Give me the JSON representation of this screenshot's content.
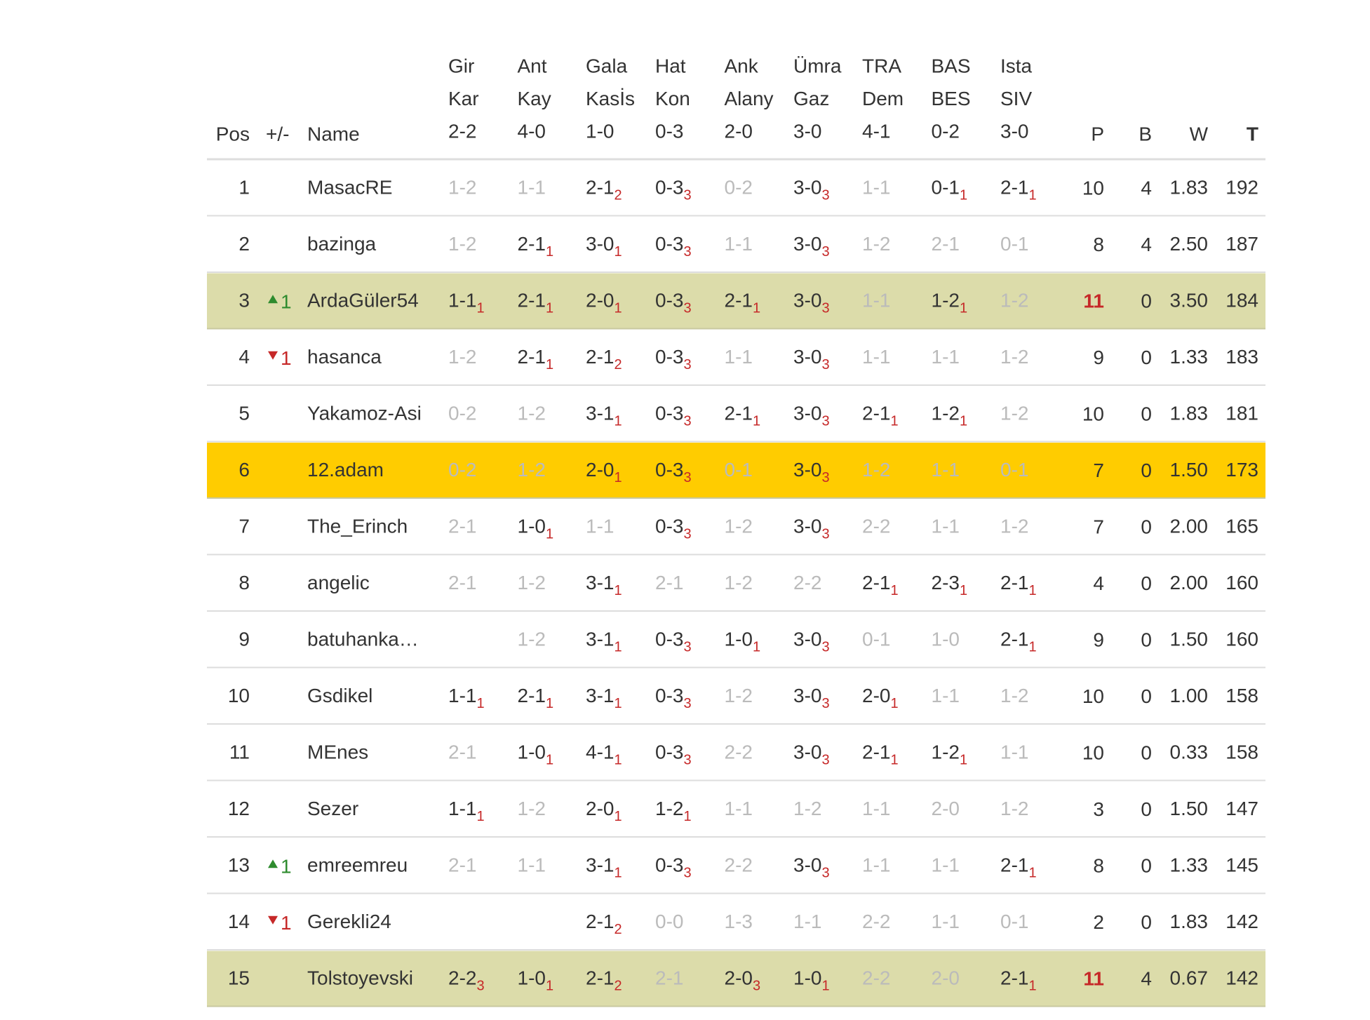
{
  "header": {
    "columns": [
      "Pos",
      "+/-",
      "Name"
    ],
    "matches": [
      [
        "Gir",
        "Kar",
        "2-2"
      ],
      [
        "Ant",
        "Kay",
        "4-0"
      ],
      [
        "Gala",
        "Kasİs",
        "1-0"
      ],
      [
        "Hat",
        "Kon",
        "0-3"
      ],
      [
        "Ank",
        "Alany",
        "2-0"
      ],
      [
        "Ümra",
        "Gaz",
        "3-0"
      ],
      [
        "TRA",
        "Dem",
        "4-1"
      ],
      [
        "BAS",
        "BES",
        "0-2"
      ],
      [
        "Ista",
        "SIV",
        "3-0"
      ]
    ],
    "stats": [
      "P",
      "B",
      "W",
      "T"
    ]
  },
  "rows": [
    {
      "pos": 1,
      "name": "MasacRE",
      "picks": [
        [
          "1-2",
          null
        ],
        [
          "1-1",
          null
        ],
        [
          "2-1",
          2
        ],
        [
          "0-3",
          3
        ],
        [
          "0-2",
          null
        ],
        [
          "3-0",
          3
        ],
        [
          "1-1",
          null
        ],
        [
          "0-1",
          1
        ],
        [
          "2-1",
          1
        ]
      ],
      "p": 10,
      "b": 4,
      "w": "1.83",
      "t": 192
    },
    {
      "pos": 2,
      "name": "bazinga",
      "picks": [
        [
          "1-2",
          null
        ],
        [
          "2-1",
          1
        ],
        [
          "3-0",
          1
        ],
        [
          "0-3",
          3
        ],
        [
          "1-1",
          null
        ],
        [
          "3-0",
          3
        ],
        [
          "1-2",
          null
        ],
        [
          "2-1",
          null
        ],
        [
          "0-1",
          null
        ]
      ],
      "p": 8,
      "b": 4,
      "w": "2.50",
      "t": 187
    },
    {
      "pos": 3,
      "trend": "up",
      "change": 1,
      "name": "ArdaGüler54",
      "picks": [
        [
          "1-1",
          1
        ],
        [
          "2-1",
          1
        ],
        [
          "2-0",
          1
        ],
        [
          "0-3",
          3
        ],
        [
          "2-1",
          1
        ],
        [
          "3-0",
          3
        ],
        [
          "1-1",
          null
        ],
        [
          "1-2",
          1
        ],
        [
          "1-2",
          null
        ]
      ],
      "p": 11,
      "b": 0,
      "w": "3.50",
      "t": 184,
      "highlight": "leader"
    },
    {
      "pos": 4,
      "trend": "down",
      "change": 1,
      "name": "hasanca",
      "picks": [
        [
          "1-2",
          null
        ],
        [
          "2-1",
          1
        ],
        [
          "2-1",
          2
        ],
        [
          "0-3",
          3
        ],
        [
          "1-1",
          null
        ],
        [
          "3-0",
          3
        ],
        [
          "1-1",
          null
        ],
        [
          "1-1",
          null
        ],
        [
          "1-2",
          null
        ]
      ],
      "p": 9,
      "b": 0,
      "w": "1.33",
      "t": 183
    },
    {
      "pos": 5,
      "name": "Yakamoz-Asi",
      "picks": [
        [
          "0-2",
          null
        ],
        [
          "1-2",
          null
        ],
        [
          "3-1",
          1
        ],
        [
          "0-3",
          3
        ],
        [
          "2-1",
          1
        ],
        [
          "3-0",
          3
        ],
        [
          "2-1",
          1
        ],
        [
          "1-2",
          1
        ],
        [
          "1-2",
          null
        ]
      ],
      "p": 10,
      "b": 0,
      "w": "1.83",
      "t": 181
    },
    {
      "pos": 6,
      "name": "12.adam",
      "picks": [
        [
          "0-2",
          null
        ],
        [
          "1-2",
          null
        ],
        [
          "2-0",
          1
        ],
        [
          "0-3",
          3
        ],
        [
          "0-1",
          null
        ],
        [
          "3-0",
          3
        ],
        [
          "1-2",
          null
        ],
        [
          "1-1",
          null
        ],
        [
          "0-1",
          null
        ]
      ],
      "p": 7,
      "b": 0,
      "w": "1.50",
      "t": 173,
      "highlight": "user"
    },
    {
      "pos": 7,
      "name": "The_Erinch",
      "picks": [
        [
          "2-1",
          null
        ],
        [
          "1-0",
          1
        ],
        [
          "1-1",
          null
        ],
        [
          "0-3",
          3
        ],
        [
          "1-2",
          null
        ],
        [
          "3-0",
          3
        ],
        [
          "2-2",
          null
        ],
        [
          "1-1",
          null
        ],
        [
          "1-2",
          null
        ]
      ],
      "p": 7,
      "b": 0,
      "w": "2.00",
      "t": 165
    },
    {
      "pos": 8,
      "name": "angelic",
      "picks": [
        [
          "2-1",
          null
        ],
        [
          "1-2",
          null
        ],
        [
          "3-1",
          1
        ],
        [
          "2-1",
          null
        ],
        [
          "1-2",
          null
        ],
        [
          "2-2",
          null
        ],
        [
          "2-1",
          1
        ],
        [
          "2-3",
          1
        ],
        [
          "2-1",
          1
        ]
      ],
      "p": 4,
      "b": 0,
      "w": "2.00",
      "t": 160
    },
    {
      "pos": 9,
      "name": "batuhanka…",
      "picks": [
        null,
        [
          "1-2",
          null
        ],
        [
          "3-1",
          1
        ],
        [
          "0-3",
          3
        ],
        [
          "1-0",
          1
        ],
        [
          "3-0",
          3
        ],
        [
          "0-1",
          null
        ],
        [
          "1-0",
          null
        ],
        [
          "2-1",
          1
        ]
      ],
      "p": 9,
      "b": 0,
      "w": "1.50",
      "t": 160
    },
    {
      "pos": 10,
      "name": "Gsdikel",
      "picks": [
        [
          "1-1",
          1
        ],
        [
          "2-1",
          1
        ],
        [
          "3-1",
          1
        ],
        [
          "0-3",
          3
        ],
        [
          "1-2",
          null
        ],
        [
          "3-0",
          3
        ],
        [
          "2-0",
          1
        ],
        [
          "1-1",
          null
        ],
        [
          "1-2",
          null
        ]
      ],
      "p": 10,
      "b": 0,
      "w": "1.00",
      "t": 158
    },
    {
      "pos": 11,
      "name": "MEnes",
      "picks": [
        [
          "2-1",
          null
        ],
        [
          "1-0",
          1
        ],
        [
          "4-1",
          1
        ],
        [
          "0-3",
          3
        ],
        [
          "2-2",
          null
        ],
        [
          "3-0",
          3
        ],
        [
          "2-1",
          1
        ],
        [
          "1-2",
          1
        ],
        [
          "1-1",
          null
        ]
      ],
      "p": 10,
      "b": 0,
      "w": "0.33",
      "t": 158
    },
    {
      "pos": 12,
      "name": "Sezer",
      "picks": [
        [
          "1-1",
          1
        ],
        [
          "1-2",
          null
        ],
        [
          "2-0",
          1
        ],
        [
          "1-2",
          1
        ],
        [
          "1-1",
          null
        ],
        [
          "1-2",
          null
        ],
        [
          "1-1",
          null
        ],
        [
          "2-0",
          null
        ],
        [
          "1-2",
          null
        ]
      ],
      "p": 3,
      "b": 0,
      "w": "1.50",
      "t": 147
    },
    {
      "pos": 13,
      "trend": "up",
      "change": 1,
      "name": "emreemreu",
      "picks": [
        [
          "2-1",
          null
        ],
        [
          "1-1",
          null
        ],
        [
          "3-1",
          1
        ],
        [
          "0-3",
          3
        ],
        [
          "2-2",
          null
        ],
        [
          "3-0",
          3
        ],
        [
          "1-1",
          null
        ],
        [
          "1-1",
          null
        ],
        [
          "2-1",
          1
        ]
      ],
      "p": 8,
      "b": 0,
      "w": "1.33",
      "t": 145
    },
    {
      "pos": 14,
      "trend": "down",
      "change": 1,
      "name": "Gerekli24",
      "picks": [
        null,
        null,
        [
          "2-1",
          2
        ],
        [
          "0-0",
          null
        ],
        [
          "1-3",
          null
        ],
        [
          "1-1",
          null
        ],
        [
          "2-2",
          null
        ],
        [
          "1-1",
          null
        ],
        [
          "0-1",
          null
        ]
      ],
      "p": 2,
      "b": 0,
      "w": "1.83",
      "t": 142
    },
    {
      "pos": 15,
      "name": "Tolstoyevski",
      "picks": [
        [
          "2-2",
          3
        ],
        [
          "1-0",
          1
        ],
        [
          "2-1",
          2
        ],
        [
          "2-1",
          null
        ],
        [
          "2-0",
          3
        ],
        [
          "1-0",
          1
        ],
        [
          "2-2",
          null
        ],
        [
          "2-0",
          null
        ],
        [
          "2-1",
          1
        ]
      ],
      "p": 11,
      "b": 4,
      "w": "0.67",
      "t": 142,
      "highlight": "leader"
    }
  ]
}
